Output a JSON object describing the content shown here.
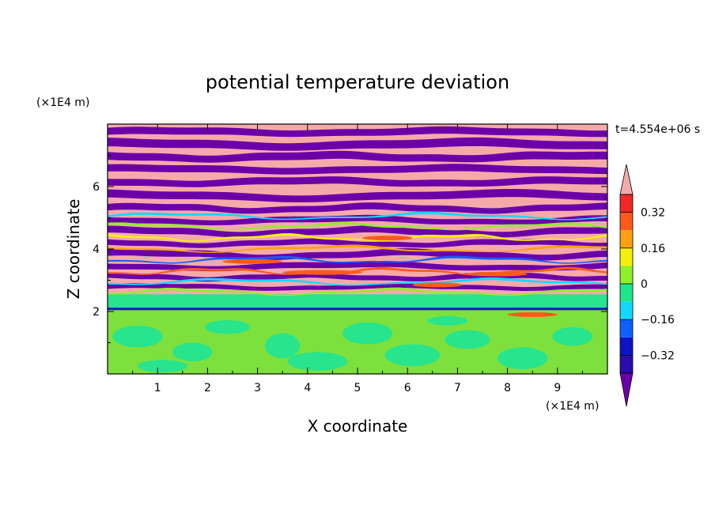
{
  "chart_data": {
    "type": "heatmap",
    "title": "potential temperature deviation",
    "xlabel": "X coordinate",
    "ylabel": "Z coordinate",
    "x_unit": "(×1E4 m)",
    "y_unit": "(×1E4 m)",
    "time_label": "t=4.554e+06 s",
    "xlim": [
      0,
      10
    ],
    "ylim": [
      0,
      8
    ],
    "x_ticks": [
      "1",
      "2",
      "3",
      "4",
      "5",
      "6",
      "7",
      "8",
      "9"
    ],
    "y_ticks": [
      "2",
      "4",
      "6"
    ],
    "colorbar": {
      "tick_labels": [
        "0.32",
        "0.16",
        "0",
        "−0.16",
        "−0.32"
      ],
      "tick_values": [
        0.32,
        0.16,
        0,
        -0.16,
        -0.32
      ],
      "levels": [
        -0.4,
        -0.32,
        -0.24,
        -0.16,
        -0.08,
        0,
        0.08,
        0.16,
        0.24,
        0.32,
        0.4
      ],
      "colors": [
        "#6a00a8",
        "#2a0cae",
        "#0c14c6",
        "#1060ff",
        "#12d8ff",
        "#1ee68a",
        "#8ef02a",
        "#f4f00c",
        "#ffa012",
        "#ff5a1c",
        "#f02828",
        "#f5aaaa"
      ],
      "extend": "both"
    },
    "field_description_colors": {
      "upper_high": "#f5aaaa",
      "upper_low": "#6a00a8",
      "lower_layer": "#7ee03c",
      "lower_patch": "#28e48c"
    }
  }
}
